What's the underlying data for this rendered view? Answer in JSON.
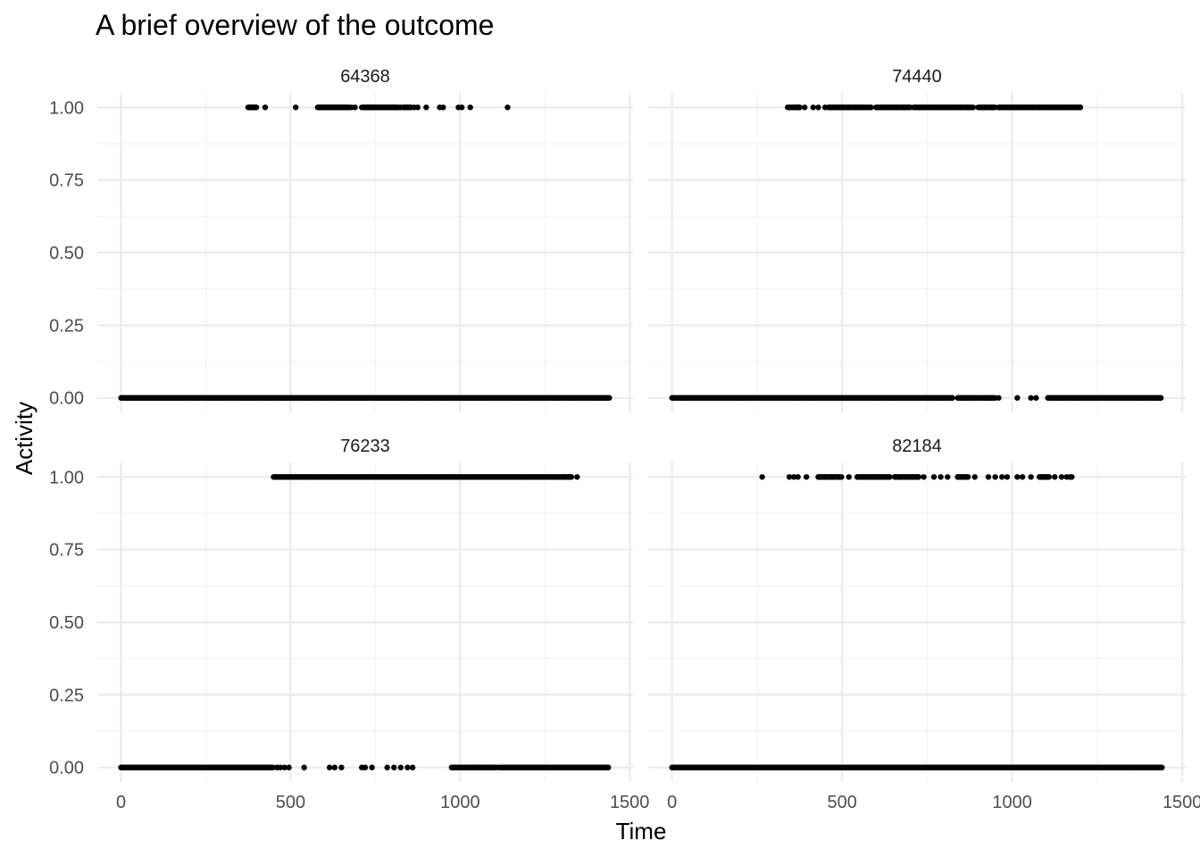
{
  "chart_data": {
    "type": "scatter",
    "title": "A brief overview of the outcome",
    "xlabel": "Time",
    "ylabel": "Activity",
    "xlim": [
      -70,
      1510
    ],
    "ylim": [
      -0.05,
      1.05
    ],
    "x_ticks": [
      0,
      500,
      1000,
      1500
    ],
    "x_tick_labels": [
      "0",
      "500",
      "1000",
      "1500"
    ],
    "y_ticks": [
      0,
      0.25,
      0.5,
      0.75,
      1
    ],
    "y_tick_labels": [
      "0.00",
      "0.25",
      "0.50",
      "0.75",
      "1.00"
    ],
    "grid": true,
    "facets": [
      {
        "label": "64368",
        "zero_ranges": [
          [
            0,
            1440
          ]
        ],
        "zero_points": [],
        "one_ranges": [
          [
            375,
            400
          ],
          [
            580,
            675
          ],
          [
            715,
            820
          ],
          [
            833,
            855
          ]
        ],
        "one_points": [
          380,
          385,
          392,
          398,
          425,
          515,
          585,
          592,
          600,
          610,
          620,
          630,
          640,
          650,
          660,
          670,
          680,
          690,
          710,
          720,
          730,
          740,
          750,
          760,
          770,
          780,
          790,
          800,
          810,
          825,
          835,
          845,
          855,
          865,
          875,
          900,
          940,
          950,
          995,
          1005,
          1030,
          1140
        ]
      },
      {
        "label": "74440",
        "zero_ranges": [
          [
            0,
            825
          ],
          [
            840,
            900
          ],
          [
            905,
            950
          ],
          [
            1105,
            1440
          ]
        ],
        "zero_points": [
          960,
          1015,
          1055,
          1070
        ],
        "one_ranges": [
          [
            355,
            375
          ],
          [
            460,
            580
          ],
          [
            605,
            700
          ],
          [
            715,
            880
          ],
          [
            905,
            950
          ],
          [
            960,
            1200
          ]
        ],
        "one_points": [
          340,
          345,
          350,
          360,
          368,
          375,
          390,
          415,
          430,
          450,
          480,
          500,
          520,
          540,
          560,
          585,
          600,
          620,
          640,
          660,
          680,
          700,
          710,
          730,
          750,
          770,
          790,
          810,
          830,
          850,
          870,
          885,
          900,
          920,
          940,
          960,
          980,
          1000,
          1020,
          1040,
          1060,
          1080,
          1100,
          1120,
          1140,
          1160,
          1180,
          1200
        ]
      },
      {
        "label": "76233",
        "zero_ranges": [
          [
            0,
            450
          ],
          [
            975,
            1110
          ],
          [
            1115,
            1240
          ],
          [
            1245,
            1440
          ]
        ],
        "zero_points": [
          460,
          470,
          482,
          495,
          540,
          615,
          630,
          650,
          710,
          720,
          740,
          785,
          805,
          825,
          845,
          860,
          980,
          1000,
          1020,
          1035,
          1045,
          1060,
          1080,
          1100
        ],
        "one_ranges": [
          [
            450,
            1290
          ],
          [
            1300,
            1330
          ]
        ],
        "one_points": [
          455,
          1295,
          1305,
          1320,
          1345
        ]
      },
      {
        "label": "82184",
        "zero_ranges": [
          [
            0,
            1440
          ]
        ],
        "zero_points": [],
        "one_ranges": [
          [
            430,
            500
          ],
          [
            545,
            640
          ],
          [
            655,
            725
          ],
          [
            840,
            870
          ],
          [
            1080,
            1110
          ]
        ],
        "one_points": [
          265,
          345,
          358,
          370,
          395,
          430,
          450,
          470,
          490,
          520,
          545,
          560,
          575,
          590,
          605,
          620,
          640,
          655,
          670,
          690,
          710,
          725,
          740,
          770,
          790,
          810,
          840,
          855,
          870,
          890,
          930,
          950,
          970,
          985,
          1015,
          1030,
          1055,
          1085,
          1095,
          1105,
          1125,
          1145,
          1160,
          1170,
          1175
        ]
      }
    ]
  }
}
